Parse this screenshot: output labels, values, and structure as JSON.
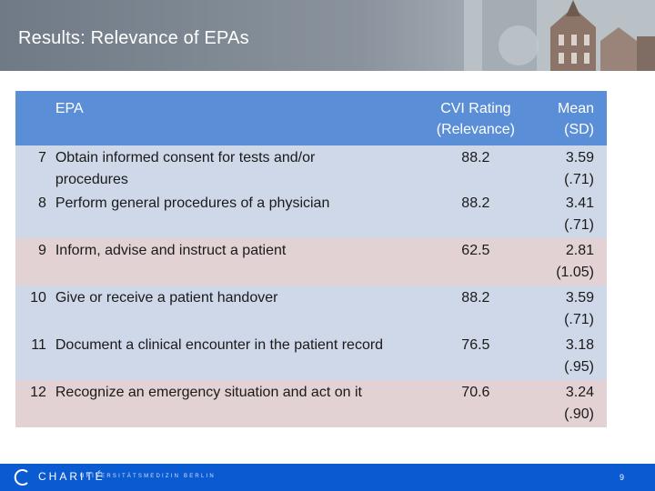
{
  "slide": {
    "title": "Results: Relevance of EPAs"
  },
  "table": {
    "headers": {
      "epa": "EPA",
      "cvi_line1": "CVI Rating",
      "cvi_line2": "(Relevance)",
      "mean_line1": "Mean",
      "mean_line2": "(SD)"
    },
    "rows": [
      {
        "num": "7",
        "epa_line1": "Obtain informed consent for tests and/or",
        "epa_line2": "procedures",
        "cvi": "88.2",
        "mean_line1": "3.59",
        "mean_line2": "(.71)"
      },
      {
        "num": "8",
        "epa_line1": "Perform general procedures of a physician",
        "epa_line2": "",
        "cvi": "88.2",
        "mean_line1": "3.41",
        "mean_line2": "(.71)"
      },
      {
        "num": "9",
        "epa_line1": "Inform, advise and instruct a patient",
        "epa_line2": "",
        "cvi": "62.5",
        "mean_line1": "2.81",
        "mean_line2": "(1.05)"
      },
      {
        "num": "10",
        "epa_line1": "Give or receive a patient handover",
        "epa_line2": "",
        "cvi": "88.2",
        "mean_line1": "3.59",
        "mean_line2": "(.71)"
      },
      {
        "num": "11",
        "epa_line1": "Document a clinical encounter in the patient record",
        "epa_line2": "",
        "cvi": "76.5",
        "mean_line1": "3.18",
        "mean_line2": "(.95)"
      },
      {
        "num": "12",
        "epa_line1": "Recognize an emergency situation and act on it",
        "epa_line2": "",
        "cvi": "70.6",
        "mean_line1": "3.24",
        "mean_line2": "(.90)"
      }
    ]
  },
  "footer": {
    "logo_text": "CHARITÉ",
    "logo_subtext": "UNIVERSITÄTSMEDIZIN BERLIN",
    "page_number": "9"
  },
  "colors": {
    "header_gray": "#7d8791",
    "table_header_blue": "#5a8fd8",
    "row_blue": "#cfd8e8",
    "row_pink": "#e3d2d4",
    "footer_blue": "#0a5ad2"
  }
}
